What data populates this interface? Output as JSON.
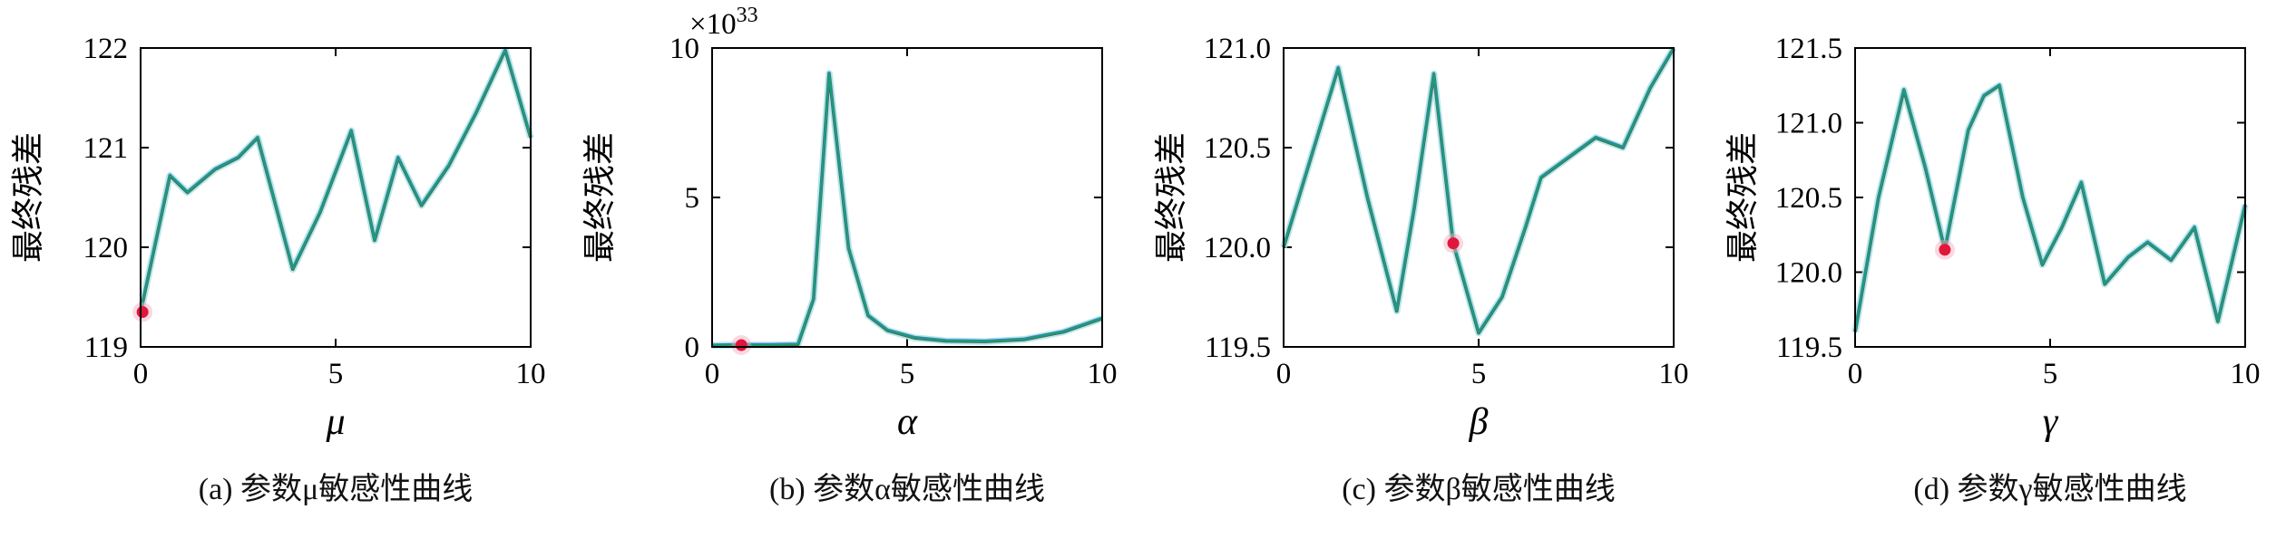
{
  "figure": {
    "background": "#ffffff"
  },
  "colors": {
    "axis": "#000000",
    "line_gray": "#555555",
    "line_blue": "#3f7fc1",
    "line_green": "#17a06e",
    "line_halo": "#a5e3e8",
    "marker": "#e0173a",
    "marker_halo": "#f6a9bc"
  },
  "chart_data": [
    {
      "type": "line",
      "id": "a",
      "caption": "(a) 参数μ敏感性曲线",
      "ylabel": "最终残差",
      "xlabel": "μ",
      "xlim": [
        0,
        10
      ],
      "ylim": [
        119,
        122
      ],
      "xticks": [
        0,
        5,
        10
      ],
      "xtick_labels": [
        "0",
        "5",
        "10"
      ],
      "yticks": [
        119,
        120,
        121,
        122
      ],
      "ytick_labels": [
        "119",
        "120",
        "121",
        "122"
      ],
      "exponent": "",
      "x": [
        0,
        0.75,
        1.2,
        1.9,
        2.5,
        3.0,
        3.9,
        4.6,
        5.4,
        6.0,
        6.6,
        7.2,
        7.9,
        8.6,
        9.35,
        10
      ],
      "y": [
        119.35,
        120.72,
        120.55,
        120.78,
        120.9,
        121.1,
        119.78,
        120.35,
        121.17,
        120.07,
        120.9,
        120.42,
        120.82,
        121.35,
        121.98,
        121.1
      ],
      "marker": {
        "x": 0.05,
        "y": 119.35
      }
    },
    {
      "type": "line",
      "id": "b",
      "caption": "(b) 参数α敏感性曲线",
      "ylabel": "最终残差",
      "xlabel": "α",
      "xlim": [
        0,
        10
      ],
      "ylim": [
        0,
        10
      ],
      "xticks": [
        0,
        5,
        10
      ],
      "xtick_labels": [
        "0",
        "5",
        "10"
      ],
      "yticks": [
        0,
        5,
        10
      ],
      "ytick_labels": [
        "0",
        "5",
        "10"
      ],
      "exponent": "×10^33",
      "x": [
        0,
        0.75,
        1.5,
        2.2,
        2.6,
        3.0,
        3.5,
        4.0,
        4.5,
        5.2,
        6.0,
        7.0,
        8.0,
        9.0,
        10
      ],
      "y": [
        0.05,
        0.06,
        0.06,
        0.08,
        1.6,
        9.15,
        3.3,
        1.05,
        0.55,
        0.3,
        0.2,
        0.18,
        0.25,
        0.5,
        0.95
      ],
      "marker": {
        "x": 0.75,
        "y": 0.06
      }
    },
    {
      "type": "line",
      "id": "c",
      "caption": "(c) 参数β敏感性曲线",
      "ylabel": "最终残差",
      "xlabel": "β",
      "xlim": [
        0,
        10
      ],
      "ylim": [
        119.5,
        121.0
      ],
      "xticks": [
        0,
        5,
        10
      ],
      "xtick_labels": [
        "0",
        "5",
        "10"
      ],
      "yticks": [
        119.5,
        120.0,
        120.5,
        121.0
      ],
      "ytick_labels": [
        "119.5",
        "120.0",
        "120.5",
        "121.0"
      ],
      "exponent": "",
      "x": [
        0,
        0.7,
        1.4,
        2.15,
        2.9,
        3.35,
        3.85,
        4.35,
        5.0,
        5.6,
        6.2,
        6.6,
        7.3,
        8.0,
        8.7,
        9.4,
        10
      ],
      "y": [
        120.0,
        120.45,
        120.9,
        120.25,
        119.68,
        120.2,
        120.87,
        120.02,
        119.57,
        119.75,
        120.1,
        120.35,
        120.45,
        120.55,
        120.5,
        120.8,
        121.0
      ],
      "marker": {
        "x": 4.35,
        "y": 120.02
      }
    },
    {
      "type": "line",
      "id": "d",
      "caption": "(d) 参数γ敏感性曲线",
      "ylabel": "最终残差",
      "xlabel": "γ",
      "xlim": [
        0,
        10
      ],
      "ylim": [
        119.5,
        121.5
      ],
      "xticks": [
        0,
        5,
        10
      ],
      "xtick_labels": [
        "0",
        "5",
        "10"
      ],
      "yticks": [
        119.5,
        120.0,
        120.5,
        121.0,
        121.5
      ],
      "ytick_labels": [
        "119.5",
        "120.0",
        "120.5",
        "121.0",
        "121.5"
      ],
      "exponent": "",
      "x": [
        0,
        0.6,
        1.25,
        1.8,
        2.3,
        2.9,
        3.3,
        3.7,
        4.3,
        4.8,
        5.3,
        5.8,
        6.4,
        7.0,
        7.5,
        8.1,
        8.7,
        9.3,
        10
      ],
      "y": [
        119.6,
        120.5,
        121.22,
        120.7,
        120.15,
        120.95,
        121.18,
        121.25,
        120.5,
        120.05,
        120.3,
        120.6,
        119.92,
        120.1,
        120.2,
        120.08,
        120.3,
        119.67,
        120.45
      ],
      "marker": {
        "x": 2.3,
        "y": 120.15
      }
    }
  ]
}
